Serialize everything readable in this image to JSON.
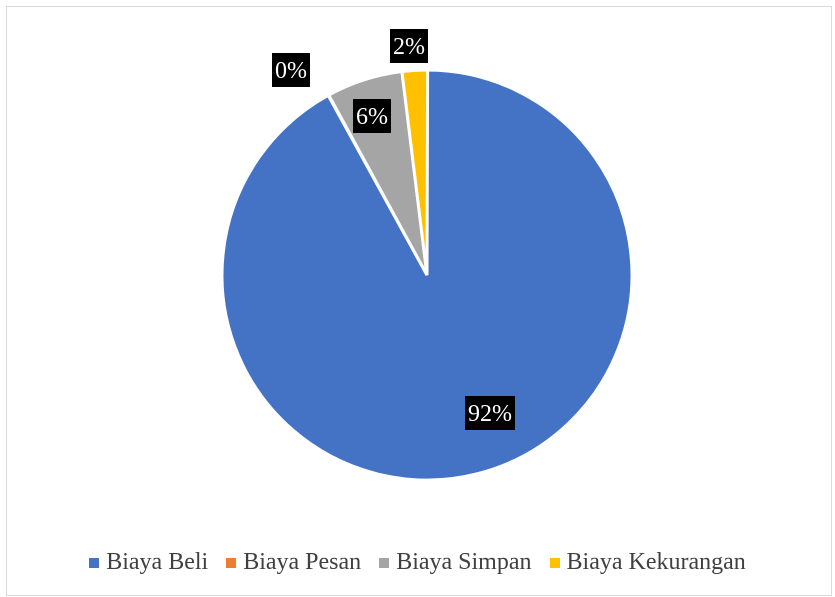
{
  "chart_data": {
    "type": "pie",
    "title": "",
    "slices": [
      {
        "label": "Biaya Beli",
        "value": 92,
        "data_label": "92%",
        "color": "#4472C4"
      },
      {
        "label": "Biaya Pesan",
        "value": 0,
        "data_label": "0%",
        "color": "#ED7D31"
      },
      {
        "label": "Biaya Simpan",
        "value": 6,
        "data_label": "6%",
        "color": "#A5A5A5"
      },
      {
        "label": "Biaya Kekurangan",
        "value": 2,
        "data_label": "2%",
        "color": "#FFC000"
      }
    ],
    "legend_position": "bottom",
    "start_angle_degrees_from_top": 0,
    "direction": "clockwise"
  }
}
